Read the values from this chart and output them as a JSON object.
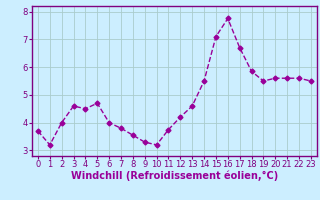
{
  "x": [
    0,
    1,
    2,
    3,
    4,
    5,
    6,
    7,
    8,
    9,
    10,
    11,
    12,
    13,
    14,
    15,
    16,
    17,
    18,
    19,
    20,
    21,
    22,
    23
  ],
  "y": [
    3.7,
    3.2,
    4.0,
    4.6,
    4.5,
    4.7,
    4.0,
    3.8,
    3.55,
    3.3,
    3.2,
    3.75,
    4.2,
    4.6,
    5.5,
    7.1,
    7.75,
    6.7,
    5.85,
    5.5,
    5.6,
    5.6,
    5.6,
    5.5
  ],
  "line_color": "#990099",
  "marker": "D",
  "marker_size": 2.5,
  "line_width": 1.0,
  "xlabel": "Windchill (Refroidissement éolien,°C)",
  "xlabel_fontsize": 7,
  "ylim": [
    2.8,
    8.2
  ],
  "xlim": [
    -0.5,
    23.5
  ],
  "yticks": [
    3,
    4,
    5,
    6,
    7,
    8
  ],
  "xticks": [
    0,
    1,
    2,
    3,
    4,
    5,
    6,
    7,
    8,
    9,
    10,
    11,
    12,
    13,
    14,
    15,
    16,
    17,
    18,
    19,
    20,
    21,
    22,
    23
  ],
  "tick_fontsize": 6,
  "background_color": "#cceeff",
  "grid_color": "#aacccc",
  "spine_color": "#800080",
  "tick_color": "#800080"
}
